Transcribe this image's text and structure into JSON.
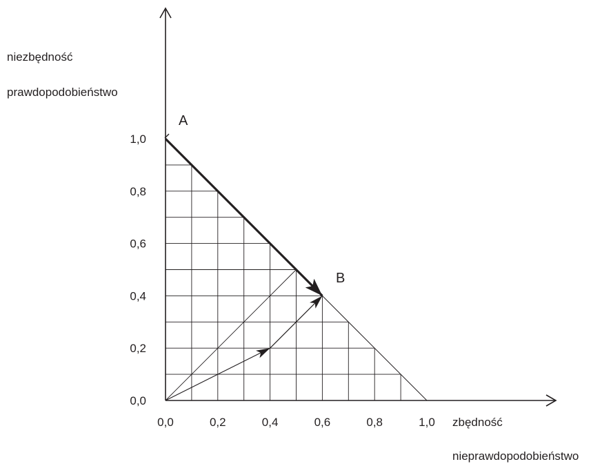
{
  "axes": {
    "y_titles": [
      "niezbędność",
      "prawdopodobieństwo"
    ],
    "x_titles": [
      "zbędność",
      "nieprawdopodobieństwo"
    ],
    "x_ticks": [
      "0,0",
      "0,2",
      "0,4",
      "0,6",
      "0,8",
      "1,0"
    ],
    "y_ticks": [
      "0,0",
      "0,2",
      "0,4",
      "0,6",
      "0,8",
      "1,0"
    ],
    "x_tick_values": [
      0,
      0.2,
      0.4,
      0.6,
      0.8,
      1.0
    ],
    "y_tick_values": [
      0,
      0.2,
      0.4,
      0.6,
      0.8,
      1.0
    ]
  },
  "points": {
    "A": {
      "label": "A",
      "x": 0.0,
      "y": 1.0
    },
    "B": {
      "label": "B",
      "x": 0.6,
      "y": 0.4
    }
  },
  "grid": {
    "step": 0.1
  },
  "thick_arrow": {
    "from": [
      0.0,
      1.0
    ],
    "to": [
      0.6,
      0.4
    ]
  },
  "thin_arrows": [
    {
      "from": [
        0.0,
        0.0
      ],
      "to": [
        0.4,
        0.2
      ]
    },
    {
      "from": [
        0.4,
        0.2
      ],
      "to": [
        0.6,
        0.4
      ]
    }
  ],
  "diagonal_line": {
    "from": [
      0.0,
      0.0
    ],
    "to": [
      0.5,
      0.5
    ]
  },
  "colors": {
    "ink": "#231f20"
  }
}
